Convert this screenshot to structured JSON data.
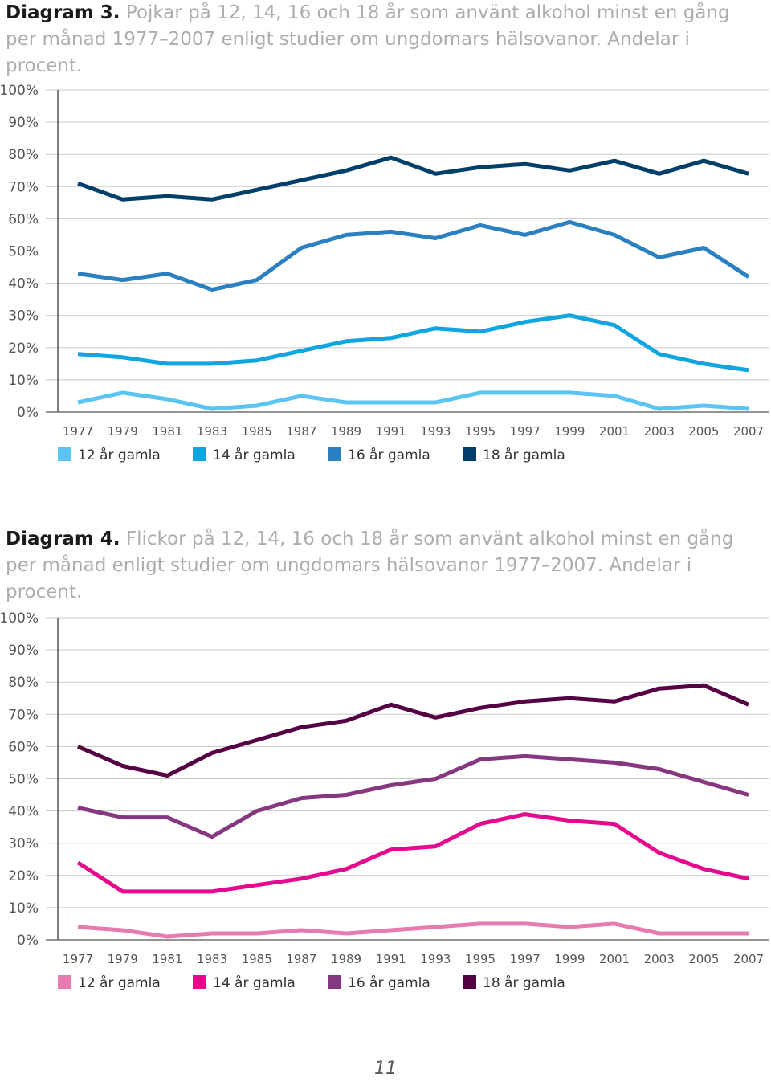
{
  "page_number": "11",
  "chart_data": [
    {
      "type": "line",
      "label": "Diagram 3.",
      "title": "Pojkar på 12, 14, 16 och 18 år som använt alkohol minst en gång per månad 1977–2007 enligt studier om ungdomars hälsovanor. Andelar i procent.",
      "xlabel": "",
      "ylabel": "",
      "ylim": [
        0,
        100
      ],
      "y_ticks": [
        "0%",
        "10%",
        "20%",
        "30%",
        "40%",
        "50%",
        "60%",
        "70%",
        "80%",
        "90%",
        "100%"
      ],
      "categories": [
        "1977",
        "1979",
        "1981",
        "1983",
        "1985",
        "1987",
        "1989",
        "1991",
        "1993",
        "1995",
        "1997",
        "1999",
        "2001",
        "2003",
        "2005",
        "2007"
      ],
      "grid": true,
      "legend_position": "bottom-left",
      "series": [
        {
          "name": "12 år gamla",
          "color": "#5bc5f2",
          "values": [
            3,
            6,
            4,
            1,
            2,
            5,
            3,
            3,
            3,
            6,
            6,
            6,
            5,
            1,
            2,
            1
          ]
        },
        {
          "name": "14 år gamla",
          "color": "#0ea5e0",
          "values": [
            18,
            17,
            15,
            15,
            16,
            19,
            22,
            23,
            26,
            25,
            28,
            30,
            27,
            18,
            15,
            13
          ]
        },
        {
          "name": "16 år gamla",
          "color": "#2a80c0",
          "values": [
            43,
            41,
            43,
            38,
            41,
            51,
            55,
            56,
            54,
            58,
            55,
            59,
            55,
            48,
            51,
            42
          ]
        },
        {
          "name": "18 år gamla",
          "color": "#003f69",
          "values": [
            71,
            66,
            67,
            66,
            69,
            72,
            75,
            79,
            74,
            76,
            77,
            75,
            78,
            74,
            78,
            74
          ]
        }
      ]
    },
    {
      "type": "line",
      "label": "Diagram 4.",
      "title": "Flickor på 12, 14, 16 och 18 år som använt alkohol minst en gång per månad enligt studier om ungdomars hälsovanor 1977–2007. Andelar i procent.",
      "xlabel": "",
      "ylabel": "",
      "ylim": [
        0,
        100
      ],
      "y_ticks": [
        "0%",
        "10%",
        "20%",
        "30%",
        "40%",
        "50%",
        "60%",
        "70%",
        "80%",
        "90%",
        "100%"
      ],
      "categories": [
        "1977",
        "1979",
        "1981",
        "1983",
        "1985",
        "1987",
        "1989",
        "1991",
        "1993",
        "1995",
        "1997",
        "1999",
        "2001",
        "2003",
        "2005",
        "2007"
      ],
      "grid": true,
      "legend_position": "bottom-left",
      "series": [
        {
          "name": "12 år gamla",
          "color": "#e77aae",
          "values": [
            4,
            3,
            1,
            2,
            2,
            3,
            2,
            3,
            4,
            5,
            5,
            4,
            5,
            2,
            2,
            2
          ]
        },
        {
          "name": "14 år gamla",
          "color": "#e5098d",
          "values": [
            24,
            15,
            15,
            15,
            17,
            19,
            22,
            28,
            29,
            36,
            39,
            37,
            36,
            27,
            22,
            19
          ]
        },
        {
          "name": "16 år gamla",
          "color": "#85377f",
          "values": [
            41,
            38,
            38,
            32,
            40,
            44,
            45,
            48,
            50,
            56,
            57,
            56,
            55,
            53,
            49,
            45
          ]
        },
        {
          "name": "18 år gamla",
          "color": "#550045",
          "values": [
            60,
            54,
            51,
            58,
            62,
            66,
            68,
            73,
            69,
            72,
            74,
            75,
            74,
            78,
            79,
            73
          ]
        }
      ]
    }
  ]
}
